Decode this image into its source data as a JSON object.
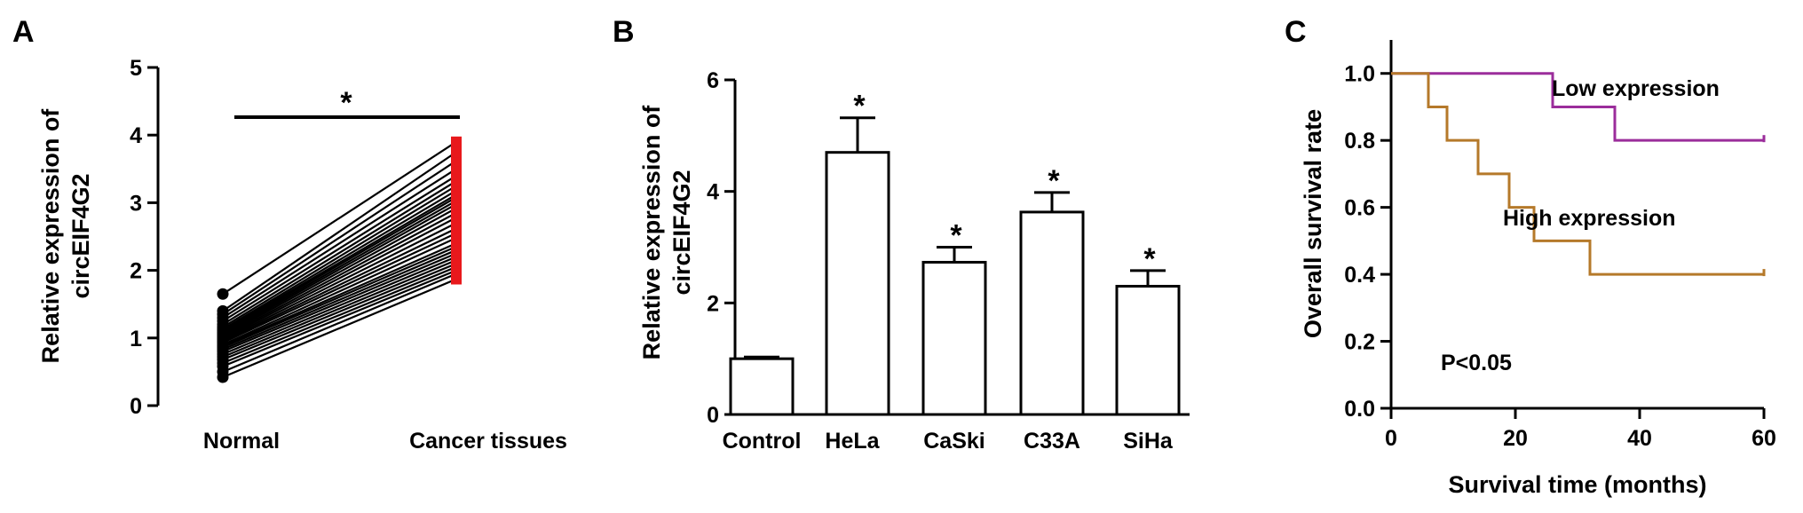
{
  "chart_data": [
    {
      "panel": "A",
      "type": "scatter",
      "title": "",
      "xlabel": "",
      "ylabel_lines": [
        "Relative expression of",
        "circEIF4G2"
      ],
      "categories": [
        "Normal",
        "Cancer tissues"
      ],
      "ylim": [
        0,
        5
      ],
      "yticks": [
        0,
        1,
        2,
        3,
        4,
        5
      ],
      "significance": "*",
      "colors": {
        "normal": "#000000",
        "cancer": "#e8191c",
        "line": "#000000"
      },
      "pairs": [
        [
          0.42,
          1.87
        ],
        [
          0.5,
          1.95
        ],
        [
          0.58,
          2.0
        ],
        [
          0.63,
          2.05
        ],
        [
          0.68,
          2.1
        ],
        [
          0.72,
          2.15
        ],
        [
          0.76,
          2.2
        ],
        [
          0.8,
          2.25
        ],
        [
          0.83,
          2.3
        ],
        [
          0.86,
          2.35
        ],
        [
          0.88,
          2.4
        ],
        [
          0.9,
          2.48
        ],
        [
          0.93,
          2.55
        ],
        [
          0.95,
          2.62
        ],
        [
          0.97,
          2.7
        ],
        [
          0.99,
          2.78
        ],
        [
          1.01,
          2.85
        ],
        [
          1.03,
          2.92
        ],
        [
          1.05,
          2.98
        ],
        [
          1.07,
          3.03
        ],
        [
          1.09,
          3.08
        ],
        [
          1.11,
          3.12
        ],
        [
          1.13,
          3.18
        ],
        [
          1.16,
          3.25
        ],
        [
          1.2,
          3.32
        ],
        [
          1.25,
          3.4
        ],
        [
          1.3,
          3.5
        ],
        [
          1.35,
          3.62
        ],
        [
          1.4,
          3.75
        ],
        [
          1.65,
          3.9
        ]
      ]
    },
    {
      "panel": "B",
      "type": "bar",
      "title": "",
      "xlabel": "",
      "ylabel_lines": [
        "Relative expression of",
        "circEIF4G2"
      ],
      "categories": [
        "Control",
        "HeLa",
        "CaSki",
        "C33A",
        "SiHa"
      ],
      "values": [
        1.0,
        4.7,
        2.73,
        3.63,
        2.3
      ],
      "errors": [
        0.03,
        0.62,
        0.27,
        0.35,
        0.28
      ],
      "significance": [
        "",
        "*",
        "*",
        "*",
        "*"
      ],
      "ylim": [
        0,
        6
      ],
      "yticks": [
        0,
        2,
        4,
        6
      ],
      "colors": {
        "bar_fill": "#ffffff",
        "bar_edge": "#000000"
      }
    },
    {
      "panel": "C",
      "type": "line",
      "title": "",
      "xlabel": "Survival time (months)",
      "ylabel": "Overall survival rate",
      "xlim": [
        0,
        60
      ],
      "ylim": [
        0,
        1.1
      ],
      "xticks": [
        0,
        20,
        40,
        60
      ],
      "yticks": [
        "0.0",
        "0.2",
        "0.4",
        "0.6",
        "0.8",
        "1.0"
      ],
      "annotation": "P<0.05",
      "series": [
        {
          "name": "Low expression",
          "color": "#9b2d9b",
          "steps": [
            [
              0,
              1.0
            ],
            [
              26,
              0.9
            ],
            [
              36,
              0.8
            ],
            [
              60,
              0.8
            ]
          ]
        },
        {
          "name": "High expression",
          "color": "#b5792a",
          "steps": [
            [
              0,
              1.0
            ],
            [
              6,
              0.9
            ],
            [
              9,
              0.8
            ],
            [
              14,
              0.7
            ],
            [
              19,
              0.6
            ],
            [
              23,
              0.5
            ],
            [
              32,
              0.4
            ],
            [
              60,
              0.4
            ]
          ]
        }
      ]
    }
  ]
}
